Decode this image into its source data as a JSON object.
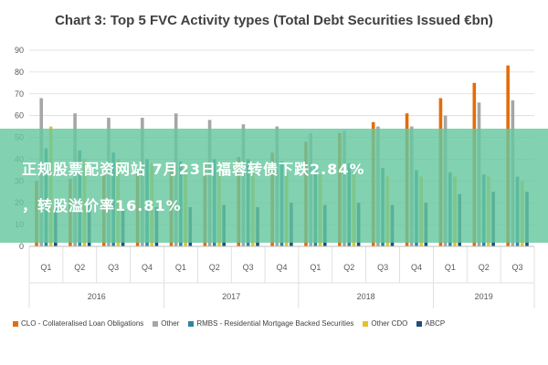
{
  "chart_data": {
    "type": "bar",
    "title": "Chart 3: Top 5 FVC Activity types (Total Debt Securities Issued €bn)",
    "xlabel": "",
    "ylabel": "",
    "ylim": [
      0,
      90
    ],
    "yticks": [
      0,
      10,
      20,
      30,
      40,
      50,
      60,
      70,
      80,
      90
    ],
    "grid": true,
    "legend_position": "bottom",
    "categories": [
      "Q1",
      "Q2",
      "Q3",
      "Q4",
      "Q1",
      "Q2",
      "Q3",
      "Q4",
      "Q1",
      "Q2",
      "Q3",
      "Q4",
      "Q1",
      "Q2",
      "Q3"
    ],
    "groups": [
      {
        "label": "2016",
        "count": 4
      },
      {
        "label": "2017",
        "count": 4
      },
      {
        "label": "2018",
        "count": 4
      },
      {
        "label": "2019",
        "count": 3
      }
    ],
    "series": [
      {
        "name": "CLO - Collateralised Loan Obligations",
        "color": "#e46c0a",
        "values": [
          30,
          31,
          33,
          34,
          36,
          38,
          41,
          43,
          48,
          52,
          57,
          61,
          68,
          75,
          83
        ]
      },
      {
        "name": "Other",
        "color": "#a6a6a6",
        "values": [
          68,
          61,
          59,
          59,
          61,
          58,
          56,
          55,
          52,
          53,
          55,
          55,
          60,
          66,
          67
        ]
      },
      {
        "name": "RMBS - Residential Mortgage Backed Securities",
        "color": "#31859c",
        "values": [
          45,
          44,
          43,
          40,
          39,
          40,
          40,
          39,
          38,
          38,
          36,
          35,
          34,
          33,
          32
        ]
      },
      {
        "name": "Other CDO",
        "color": "#e6c229",
        "values": [
          55,
          40,
          40,
          38,
          38,
          36,
          35,
          34,
          33,
          33,
          32,
          32,
          32,
          32,
          30
        ]
      },
      {
        "name": "ABCP",
        "color": "#1f4e79",
        "values": [
          21,
          20,
          17,
          18,
          18,
          19,
          18,
          20,
          19,
          20,
          19,
          20,
          24,
          25,
          25
        ]
      }
    ]
  },
  "overlay": {
    "line1": "正规股票配资网站  7月23日福蓉转债下跌2.84%",
    "line2": "，转股溢价率16.81%"
  }
}
